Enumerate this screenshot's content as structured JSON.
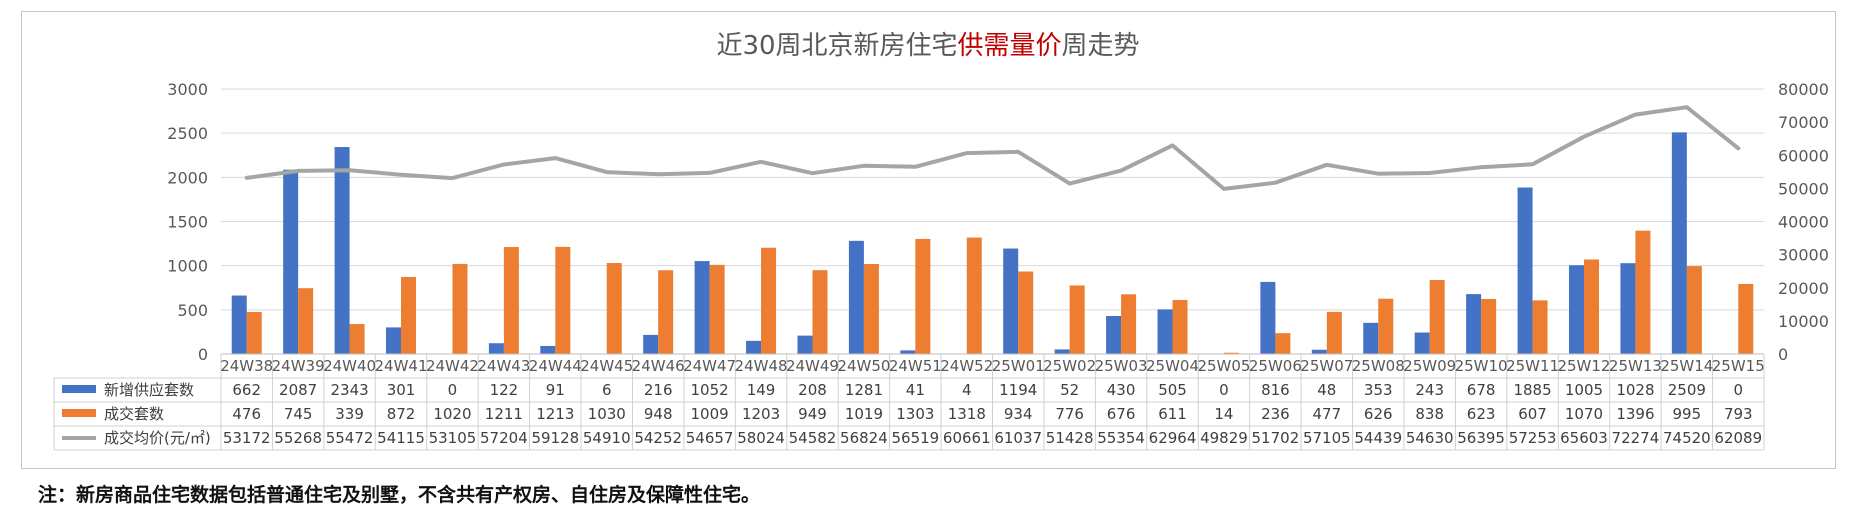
{
  "chart_data": {
    "type": "bar+line",
    "title_parts": [
      {
        "text": "近30周北京新房住宅",
        "color": "#595959"
      },
      {
        "text": "供需量价",
        "color": "#c00000"
      },
      {
        "text": "周走势",
        "color": "#595959"
      }
    ],
    "categories": [
      "24W38",
      "24W39",
      "24W40",
      "24W41",
      "24W42",
      "24W43",
      "24W44",
      "24W45",
      "24W46",
      "24W47",
      "24W48",
      "24W49",
      "24W50",
      "24W51",
      "24W52",
      "25W01",
      "25W02",
      "25W03",
      "25W04",
      "25W05",
      "25W06",
      "25W07",
      "25W08",
      "25W09",
      "25W10",
      "25W11",
      "25W12",
      "25W13",
      "25W14",
      "25W15"
    ],
    "series": [
      {
        "name": "新增供应套数",
        "type": "bar",
        "axis": "left",
        "color": "#4472c4",
        "values": [
          662,
          2087,
          2343,
          301,
          0,
          122,
          91,
          6,
          216,
          1052,
          149,
          208,
          1281,
          41,
          4,
          1194,
          52,
          430,
          505,
          0,
          816,
          48,
          353,
          243,
          678,
          1885,
          1005,
          1028,
          2509,
          0
        ]
      },
      {
        "name": "成交套数",
        "type": "bar",
        "axis": "left",
        "color": "#ed7d31",
        "values": [
          476,
          745,
          339,
          872,
          1020,
          1211,
          1213,
          1030,
          948,
          1009,
          1203,
          949,
          1019,
          1303,
          1318,
          934,
          776,
          676,
          611,
          14,
          236,
          477,
          626,
          838,
          623,
          607,
          1070,
          1396,
          995,
          793
        ]
      },
      {
        "name": "成交均价(元/㎡)",
        "type": "line",
        "axis": "right",
        "color": "#a5a5a5",
        "values": [
          53172,
          55268,
          55472,
          54115,
          53105,
          57204,
          59128,
          54910,
          54252,
          54657,
          58024,
          54582,
          56824,
          56519,
          60661,
          61037,
          51428,
          55354,
          62964,
          49829,
          51702,
          57105,
          54439,
          54630,
          56395,
          57253,
          65603,
          72274,
          74520,
          62089
        ]
      }
    ],
    "y_left": {
      "min": 0,
      "max": 3000,
      "ticks": [
        "0",
        "500",
        "1000",
        "1500",
        "2000",
        "2500",
        "3000"
      ]
    },
    "y_right": {
      "min": 0,
      "max": 80000,
      "ticks": [
        "0",
        "10000",
        "20000",
        "30000",
        "40000",
        "50000",
        "60000",
        "70000",
        "80000"
      ]
    },
    "grid": true,
    "legend": "data-table-below"
  },
  "footnote": "注：新房商品住宅数据包括普通住宅及别墅，不含共有产权房、自住房及保障性住宅。"
}
